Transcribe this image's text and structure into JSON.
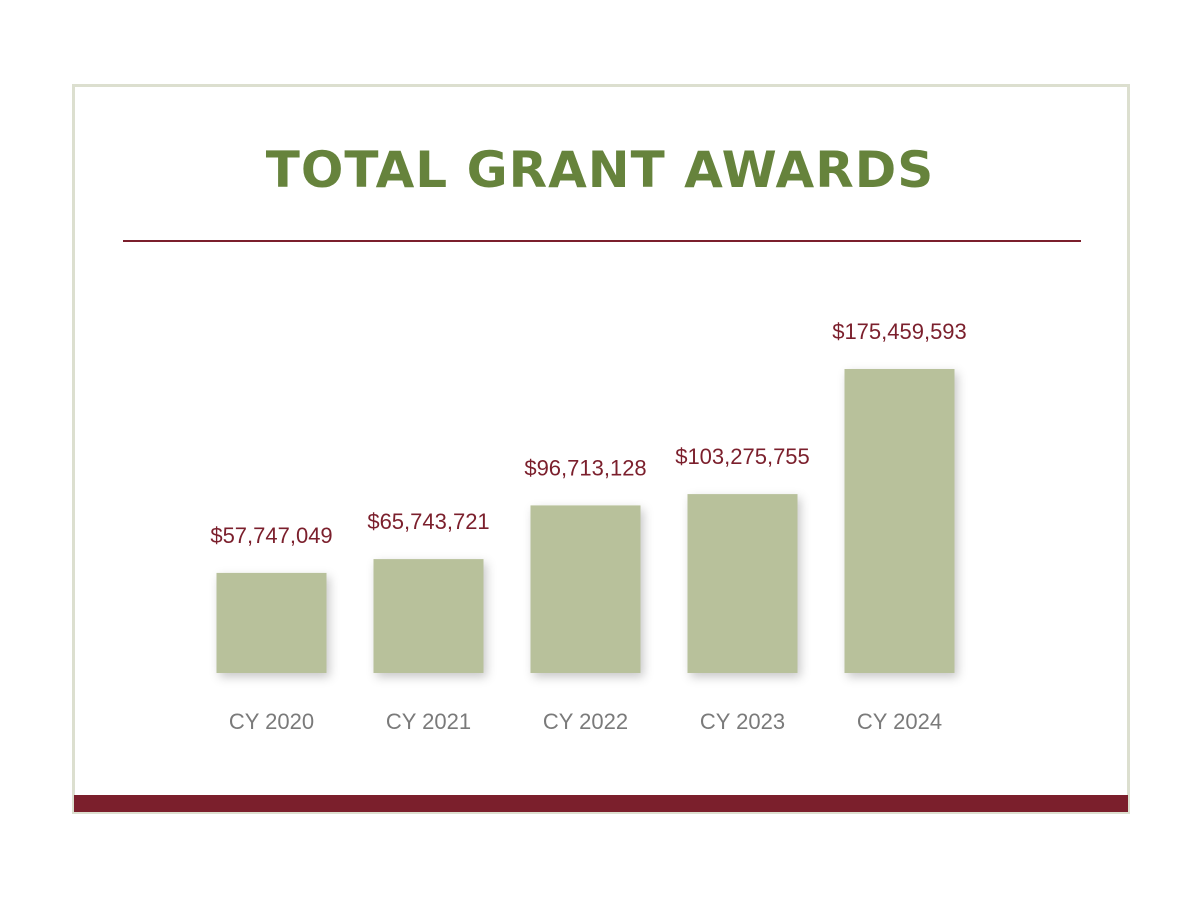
{
  "chart_data": {
    "type": "bar",
    "title": "TOTAL GRANT AWARDS",
    "xlabel": "",
    "ylabel": "",
    "categories": [
      "CY 2020",
      "CY 2021",
      "CY 2022",
      "CY 2023",
      "CY 2024"
    ],
    "values": [
      57747049,
      65743721,
      96713128,
      103275755,
      175459593
    ],
    "value_labels": [
      "$57,747,049",
      "$65,743,721",
      "$96,713,128",
      "$103,275,755",
      "$175,459,593"
    ],
    "ylim": [
      0,
      175459593
    ],
    "grid": false,
    "legend": "none"
  },
  "colors": {
    "title": "#66833c",
    "bar": "#b8c19b",
    "value_label": "#7b1f2c",
    "tick_label": "#7a7a7a",
    "accent": "#7b1f2c",
    "border": "#dcdfcf"
  }
}
